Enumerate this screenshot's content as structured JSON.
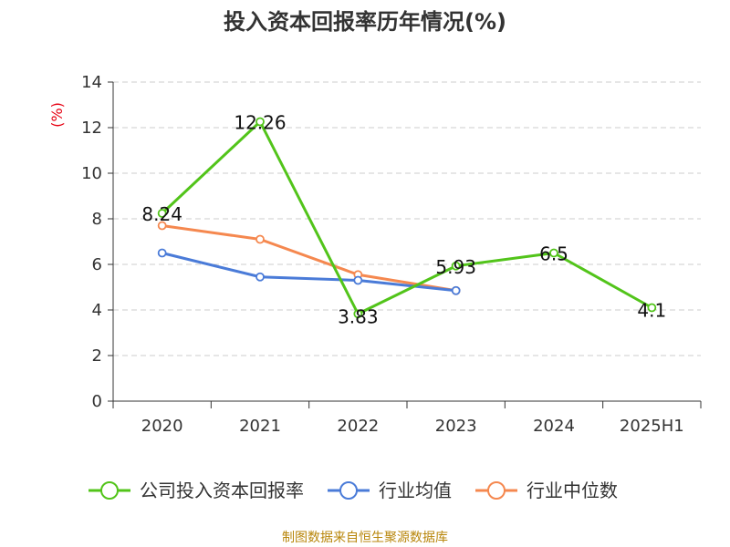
{
  "chart_data": {
    "type": "line",
    "title": "投入资本回报率历年情况(%)",
    "ylabel": "(%)",
    "xlabel": "",
    "categories": [
      "2020",
      "2021",
      "2022",
      "2023",
      "2024",
      "2025H1"
    ],
    "ylim": [
      0,
      14
    ],
    "yticks": [
      0,
      2,
      4,
      6,
      8,
      10,
      12,
      14
    ],
    "grid": true,
    "legend_position": "bottom",
    "series": [
      {
        "name": "公司投入资本回报率",
        "color": "#52c41a",
        "values": [
          8.24,
          12.26,
          3.83,
          5.93,
          6.5,
          4.1
        ],
        "labels": [
          "8.24",
          "12.26",
          "3.83",
          "5.93",
          "6.5",
          "4.1"
        ]
      },
      {
        "name": "行业均值",
        "color": "#4a7bd8",
        "values": [
          6.5,
          5.45,
          5.3,
          4.85,
          null,
          null
        ]
      },
      {
        "name": "行业中位数",
        "color": "#f5884f",
        "values": [
          7.7,
          7.1,
          5.55,
          4.85,
          null,
          null
        ]
      }
    ],
    "source": "制图数据来自恒生聚源数据库"
  }
}
